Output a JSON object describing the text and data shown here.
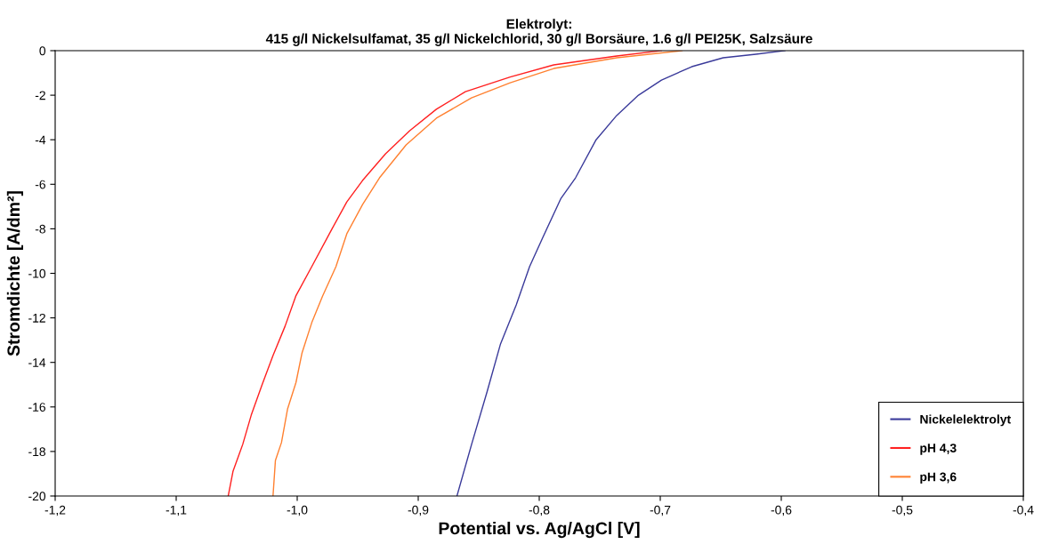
{
  "chart_data": {
    "type": "line",
    "title": "Elektrolyt:\n415 g/l Nickelsulfamat, 35 g/l Nickelchlorid, 30 g/l Borsäure, 1.6 g/l PEI25K, Salzsäure",
    "xlabel": "Potential vs. Ag/AgCl [V]",
    "ylabel": "Stromdichte [A/dm²]",
    "xlim": [
      -1.2,
      -0.4
    ],
    "ylim": [
      -20,
      0
    ],
    "xticks": [
      {
        "value": -1.2,
        "label": "-1,2"
      },
      {
        "value": -1.1,
        "label": "-1,1"
      },
      {
        "value": -1.0,
        "label": "-1,0"
      },
      {
        "value": -0.9,
        "label": "-0,9"
      },
      {
        "value": -0.8,
        "label": "-0,8"
      },
      {
        "value": -0.7,
        "label": "-0,7"
      },
      {
        "value": -0.6,
        "label": "-0,6"
      },
      {
        "value": -0.5,
        "label": "-0,5"
      },
      {
        "value": -0.4,
        "label": "-0,4"
      }
    ],
    "yticks": [
      0,
      -2,
      -4,
      -6,
      -8,
      -10,
      -12,
      -14,
      -16,
      -18,
      -20
    ],
    "grid": false,
    "legend": "bottom right",
    "marker": "none",
    "line_style": "solid",
    "series": [
      {
        "name": "Nickelelektrolyt",
        "color": "#3a3a9a",
        "x": [
          -0.868,
          -0.856,
          -0.843,
          -0.832,
          -0.819,
          -0.808,
          -0.797,
          -0.782,
          -0.77,
          -0.753,
          -0.736,
          -0.718,
          -0.699,
          -0.674,
          -0.648,
          -0.621,
          -0.597
        ],
        "values": [
          -20.0,
          -17.7,
          -15.3,
          -13.17,
          -11.42,
          -9.7,
          -8.38,
          -6.63,
          -5.71,
          -4.0,
          -2.91,
          -2.0,
          -1.32,
          -0.72,
          -0.32,
          -0.16,
          0
        ]
      },
      {
        "name": "pH 4,3",
        "color": "#ff2020",
        "x": [
          -1.057,
          -1.053,
          -1.045,
          -1.038,
          -1.029,
          -1.02,
          -1.01,
          -1.001,
          -0.988,
          -0.971,
          -0.959,
          -0.946,
          -0.927,
          -0.907,
          -0.885,
          -0.861,
          -0.824,
          -0.788,
          -0.736,
          -0.699
        ],
        "values": [
          -20.0,
          -18.88,
          -17.68,
          -16.37,
          -15.0,
          -13.69,
          -12.37,
          -11.0,
          -9.7,
          -7.98,
          -6.79,
          -5.83,
          -4.63,
          -3.59,
          -2.63,
          -1.84,
          -1.18,
          -0.64,
          -0.24,
          0
        ]
      },
      {
        "name": "pH 3,6",
        "color": "#ff8030",
        "x": [
          -1.02,
          -1.018,
          -1.013,
          -1.008,
          -1.001,
          -0.996,
          -0.988,
          -0.979,
          -0.968,
          -0.959,
          -0.946,
          -0.932,
          -0.91,
          -0.885,
          -0.856,
          -0.824,
          -0.788,
          -0.736,
          -0.682
        ],
        "values": [
          -20.0,
          -18.4,
          -17.6,
          -16.1,
          -14.9,
          -13.57,
          -12.22,
          -11.02,
          -9.7,
          -8.22,
          -6.91,
          -5.71,
          -4.23,
          -3.03,
          -2.12,
          -1.44,
          -0.8,
          -0.32,
          0
        ]
      }
    ]
  }
}
